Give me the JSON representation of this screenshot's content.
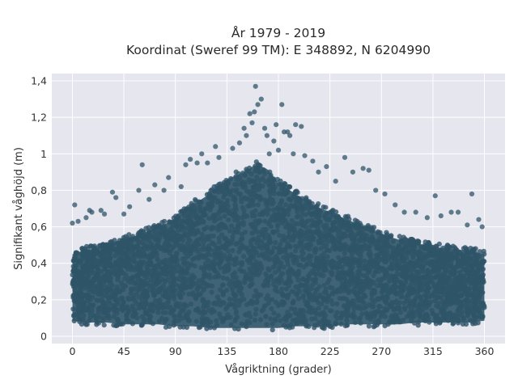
{
  "chart_data": {
    "type": "scatter",
    "title_lines": [
      "År 1979 - 2019",
      "Koordinat (Sweref 99 TM): E 348892, N 6204990"
    ],
    "xlabel": "Vågriktning (grader)",
    "ylabel": "Signifikant våghöjd (m)",
    "xlim": [
      -18,
      378
    ],
    "ylim": [
      -0.04,
      1.44
    ],
    "xticks": [
      0,
      45,
      90,
      135,
      180,
      225,
      270,
      315,
      360
    ],
    "xtick_labels": [
      "0",
      "45",
      "90",
      "135",
      "180",
      "225",
      "270",
      "315",
      "360"
    ],
    "yticks": [
      0,
      0.2,
      0.4,
      0.6,
      0.8,
      1.0,
      1.2,
      1.4
    ],
    "ytick_labels": [
      "0",
      "0,2",
      "0,4",
      "0,6",
      "0,8",
      "1",
      "1,2",
      "1,4"
    ],
    "grid": true,
    "marker_color": "#2f5468",
    "plot_bg": "#e5e6ee",
    "envelope": {
      "x": [
        0,
        10,
        20,
        30,
        45,
        60,
        75,
        90,
        105,
        120,
        135,
        150,
        160,
        170,
        180,
        195,
        210,
        225,
        240,
        255,
        270,
        285,
        300,
        315,
        330,
        345,
        360
      ],
      "upper": [
        0.47,
        0.49,
        0.5,
        0.52,
        0.55,
        0.58,
        0.62,
        0.66,
        0.74,
        0.8,
        0.88,
        0.92,
        0.96,
        0.94,
        0.86,
        0.8,
        0.74,
        0.7,
        0.66,
        0.62,
        0.58,
        0.55,
        0.53,
        0.51,
        0.5,
        0.49,
        0.47
      ],
      "lower": [
        0.07,
        0.06,
        0.06,
        0.06,
        0.05,
        0.05,
        0.05,
        0.04,
        0.04,
        0.03,
        0.03,
        0.03,
        0.03,
        0.03,
        0.03,
        0.04,
        0.04,
        0.04,
        0.05,
        0.05,
        0.05,
        0.05,
        0.06,
        0.06,
        0.06,
        0.06,
        0.07
      ]
    },
    "outliers": [
      {
        "x": 0,
        "y": 0.62
      },
      {
        "x": 2,
        "y": 0.72
      },
      {
        "x": 5,
        "y": 0.63
      },
      {
        "x": 12,
        "y": 0.65
      },
      {
        "x": 15,
        "y": 0.69
      },
      {
        "x": 17,
        "y": 0.68
      },
      {
        "x": 25,
        "y": 0.69
      },
      {
        "x": 28,
        "y": 0.67
      },
      {
        "x": 35,
        "y": 0.79
      },
      {
        "x": 38,
        "y": 0.76
      },
      {
        "x": 45,
        "y": 0.67
      },
      {
        "x": 50,
        "y": 0.71
      },
      {
        "x": 58,
        "y": 0.8
      },
      {
        "x": 61,
        "y": 0.94
      },
      {
        "x": 67,
        "y": 0.75
      },
      {
        "x": 72,
        "y": 0.83
      },
      {
        "x": 80,
        "y": 0.8
      },
      {
        "x": 84,
        "y": 0.87
      },
      {
        "x": 95,
        "y": 0.82
      },
      {
        "x": 99,
        "y": 0.94
      },
      {
        "x": 103,
        "y": 0.97
      },
      {
        "x": 109,
        "y": 0.95
      },
      {
        "x": 113,
        "y": 1.0
      },
      {
        "x": 118,
        "y": 0.95
      },
      {
        "x": 125,
        "y": 1.04
      },
      {
        "x": 128,
        "y": 0.98
      },
      {
        "x": 140,
        "y": 1.03
      },
      {
        "x": 146,
        "y": 1.06
      },
      {
        "x": 150,
        "y": 1.14
      },
      {
        "x": 152,
        "y": 1.1
      },
      {
        "x": 155,
        "y": 1.22
      },
      {
        "x": 157,
        "y": 1.17
      },
      {
        "x": 159,
        "y": 1.23
      },
      {
        "x": 160,
        "y": 1.37
      },
      {
        "x": 162,
        "y": 1.27
      },
      {
        "x": 165,
        "y": 1.3
      },
      {
        "x": 168,
        "y": 1.14
      },
      {
        "x": 170,
        "y": 1.1
      },
      {
        "x": 172,
        "y": 1.0
      },
      {
        "x": 176,
        "y": 1.07
      },
      {
        "x": 178,
        "y": 1.16
      },
      {
        "x": 180,
        "y": 1.02
      },
      {
        "x": 183,
        "y": 1.27
      },
      {
        "x": 185,
        "y": 1.12
      },
      {
        "x": 188,
        "y": 1.12
      },
      {
        "x": 190,
        "y": 1.1
      },
      {
        "x": 193,
        "y": 1.0
      },
      {
        "x": 195,
        "y": 1.16
      },
      {
        "x": 200,
        "y": 1.15
      },
      {
        "x": 203,
        "y": 0.99
      },
      {
        "x": 210,
        "y": 0.96
      },
      {
        "x": 215,
        "y": 0.9
      },
      {
        "x": 222,
        "y": 0.93
      },
      {
        "x": 230,
        "y": 0.85
      },
      {
        "x": 238,
        "y": 0.98
      },
      {
        "x": 245,
        "y": 0.9
      },
      {
        "x": 254,
        "y": 0.92
      },
      {
        "x": 259,
        "y": 0.91
      },
      {
        "x": 265,
        "y": 0.8
      },
      {
        "x": 273,
        "y": 0.78
      },
      {
        "x": 282,
        "y": 0.72
      },
      {
        "x": 290,
        "y": 0.68
      },
      {
        "x": 300,
        "y": 0.68
      },
      {
        "x": 310,
        "y": 0.65
      },
      {
        "x": 317,
        "y": 0.77
      },
      {
        "x": 322,
        "y": 0.66
      },
      {
        "x": 331,
        "y": 0.68
      },
      {
        "x": 337,
        "y": 0.68
      },
      {
        "x": 345,
        "y": 0.61
      },
      {
        "x": 349,
        "y": 0.78
      },
      {
        "x": 355,
        "y": 0.64
      },
      {
        "x": 358,
        "y": 0.6
      }
    ]
  }
}
